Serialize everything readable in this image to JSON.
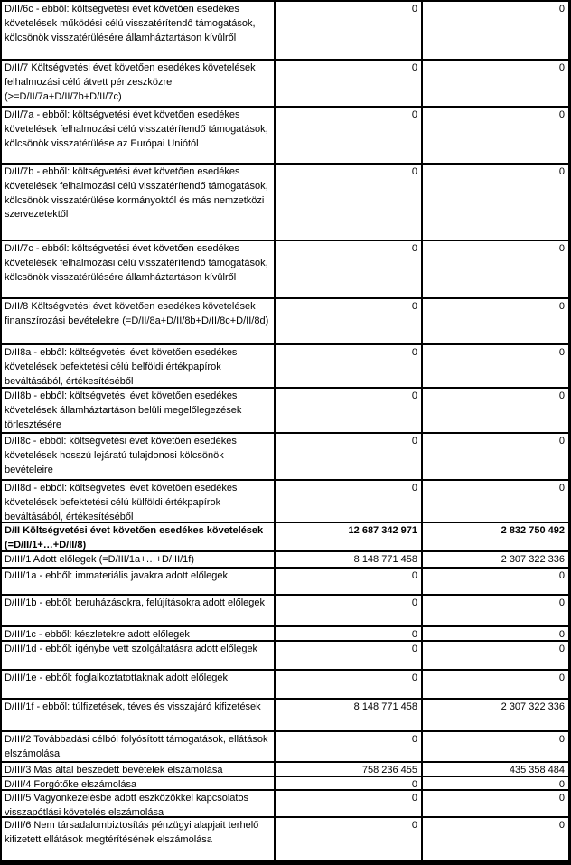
{
  "page": {
    "kind": "budget-report-table-fragment",
    "language": "hu",
    "background_color": "#ffffff",
    "border_color": "#000000",
    "text_color": "#000000"
  },
  "table": {
    "columns": [
      "megnevezes",
      "osszeg_1",
      "osszeg_2"
    ],
    "rows": [
      {
        "label": "D/II/6c - ebből: költségvetési évet követően esedékes követelések működési célú visszatérítendő támogatások, kölcsönök visszatérülésére államháztartáson kívülről",
        "value1": "0",
        "value2": "0",
        "emphasis": false
      },
      {
        "label": "D/II/7 Költségvetési évet követően esedékes követelések felhalmozási célú átvett pénzeszközre (>=D/II/7a+D/II/7b+D/II/7c)",
        "value1": "0",
        "value2": "0",
        "emphasis": false
      },
      {
        "label": "D/II/7a - ebből: költségvetési évet követően esedékes követelések felhalmozási célú visszatérítendő támogatások, kölcsönök visszatérülése az Európai Uniótól",
        "value1": "0",
        "value2": "0",
        "emphasis": false
      },
      {
        "label": "D/II/7b - ebből: költségvetési évet követően esedékes követelések felhalmozási célú visszatérítendő támogatások, kölcsönök visszatérülése kormányoktól és más nemzetközi szervezetektől",
        "value1": "0",
        "value2": "0",
        "emphasis": false
      },
      {
        "label": "D/II/7c - ebből: költségvetési évet követően esedékes követelések felhalmozási célú visszatérítendő támogatások, kölcsönök visszatérülésére államháztartáson kívülről",
        "value1": "0",
        "value2": "0",
        "emphasis": false
      },
      {
        "label": "D/II/8 Költségvetési évet követően esedékes követelések finanszírozási bevételekre (=D/II/8a+D/II/8b+D/II/8c+D/II/8d)",
        "value1": "0",
        "value2": "0",
        "emphasis": false
      },
      {
        "label": "D/II8a - ebből: költségvetési évet követően esedékes követelések befektetési célú belföldi értékpapírok beváltásából, értékesítéséből",
        "value1": "0",
        "value2": "0",
        "emphasis": false
      },
      {
        "label": "D/II8b - ebből: költségvetési évet követően esedékes követelések államháztartáson belüli megelőlegezések törlesztésére",
        "value1": "0",
        "value2": "0",
        "emphasis": false
      },
      {
        "label": "D/II8c - ebből: költségvetési évet követően esedékes követelések hosszú lejáratú tulajdonosi kölcsönök bevételeire",
        "value1": "0",
        "value2": "0",
        "emphasis": false
      },
      {
        "label": "D/II8d - ebből: költségvetési évet követően esedékes követelések befektetési célú külföldi értékpapírok beváltásából, értékesítéséből",
        "value1": "0",
        "value2": "0",
        "emphasis": false
      },
      {
        "label": "D/II Költségvetési évet követően esedékes követelések (=D/II/1+…+D/II/8)",
        "value1": "12 687 342 971",
        "value2": "2 832 750 492",
        "emphasis": true
      },
      {
        "label": "D/III/1 Adott előlegek (=D/III/1a+…+D/III/1f)",
        "value1": "8 148 771 458",
        "value2": "2 307 322 336",
        "emphasis": false
      },
      {
        "label": "D/III/1a - ebből: immateriális javakra adott előlegek",
        "value1": "0",
        "value2": "0",
        "emphasis": false
      },
      {
        "label": "D/III/1b - ebből: beruházásokra, felújításokra adott előlegek",
        "value1": "0",
        "value2": "0",
        "emphasis": false
      },
      {
        "label": "D/III/1c - ebből: készletekre adott előlegek",
        "value1": "0",
        "value2": "0",
        "emphasis": false
      },
      {
        "label": "D/III/1d - ebből: igénybe vett szolgáltatásra adott előlegek",
        "value1": "0",
        "value2": "0",
        "emphasis": false
      },
      {
        "label": "D/III/1e - ebből: foglalkoztatottaknak adott előlegek",
        "value1": "0",
        "value2": "0",
        "emphasis": false
      },
      {
        "label": "D/III/1f - ebből: túlfizetések, téves és visszajáró kifizetések",
        "value1": "8 148 771 458",
        "value2": "2 307 322 336",
        "emphasis": false
      },
      {
        "label": "D/III/2 Továbbadási célból folyósított támogatások, ellátások elszámolása",
        "value1": "0",
        "value2": "0",
        "emphasis": false
      },
      {
        "label": "D/III/3 Más által beszedett bevételek elszámolása",
        "value1": "758 236 455",
        "value2": "435 358 484",
        "emphasis": false
      },
      {
        "label": "D/III/4 Forgótőke elszámolása",
        "value1": "0",
        "value2": "0",
        "emphasis": false
      },
      {
        "label": "D/III/5 Vagyonkezelésbe adott eszközökkel kapcsolatos visszapótlási követelés elszámolása",
        "value1": "0",
        "value2": "0",
        "emphasis": false
      },
      {
        "label": "D/III/6 Nem társadalombiztosítás pénzügyi alapjait terhelő kifizetett ellátások megtérítésének elszámolása",
        "value1": "0",
        "value2": "0",
        "emphasis": false
      }
    ]
  }
}
